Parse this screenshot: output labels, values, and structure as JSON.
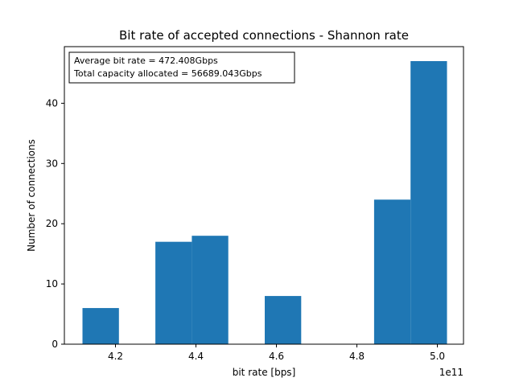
{
  "chart_data": {
    "type": "bar",
    "title": "Bit rate of accepted connections - Shannon rate",
    "xlabel": "bit rate [bps]",
    "ylabel": "Number of connections",
    "x_offset_label": "1e11",
    "x_scale": 100000000000,
    "xlim": [
      4.073,
      5.065
    ],
    "ylim": [
      0,
      49.4
    ],
    "x_ticks": [
      4.2,
      4.4,
      4.6,
      4.8,
      5.0
    ],
    "x_tick_labels": [
      "4.2",
      "4.4",
      "4.6",
      "4.8",
      "5.0"
    ],
    "y_ticks": [
      0,
      10,
      20,
      30,
      40
    ],
    "y_tick_labels": [
      "0",
      "10",
      "20",
      "30",
      "40"
    ],
    "bin_edges": [
      4.118,
      4.2086,
      4.2992,
      4.3898,
      4.4804,
      4.571,
      4.6616,
      4.7522,
      4.8428,
      4.9334,
      5.024
    ],
    "values": [
      6,
      0,
      17,
      18,
      0,
      8,
      0,
      0,
      24,
      47
    ],
    "bar_color": "#1f77b4",
    "grid": false,
    "annotation": {
      "line1": "Average bit rate = 472.408Gbps",
      "line2": "Total capacity allocated = 56689.043Gbps",
      "placement": "top-left"
    }
  }
}
